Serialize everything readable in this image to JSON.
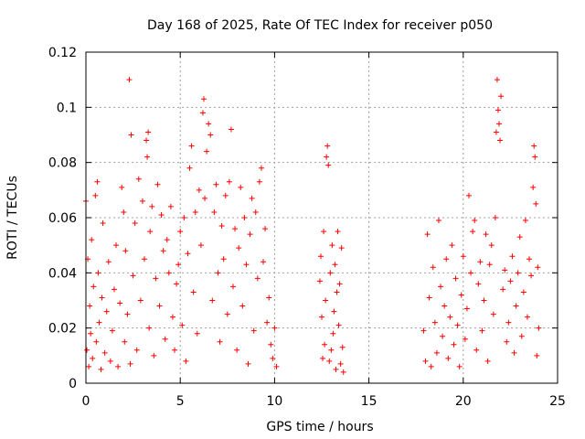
{
  "chart_data": {
    "type": "scatter",
    "title": "Day 168 of 2025, Rate Of TEC Index for receiver p050",
    "xlabel": "GPS time / hours",
    "ylabel": "ROTI / TECUs",
    "xlim": [
      0,
      25
    ],
    "ylim": [
      0,
      0.12
    ],
    "xticks": [
      0,
      5,
      10,
      15,
      20,
      25
    ],
    "yticks": [
      0,
      0.02,
      0.04,
      0.06,
      0.08,
      0.1,
      0.12
    ],
    "xtick_labels": [
      "0",
      "5",
      "10",
      "15",
      "20",
      "25"
    ],
    "ytick_labels": [
      "0",
      "0.02",
      "0.04",
      "0.06",
      "0.08",
      "0.1",
      "0.12"
    ],
    "grid": true,
    "marker": "+",
    "color": "#ff0000",
    "series": [
      {
        "values": [
          [
            0.0,
            0.066
          ],
          [
            0.05,
            0.012
          ],
          [
            0.1,
            0.045
          ],
          [
            0.15,
            0.006
          ],
          [
            0.2,
            0.028
          ],
          [
            0.25,
            0.018
          ],
          [
            0.3,
            0.052
          ],
          [
            0.35,
            0.009
          ],
          [
            0.4,
            0.035
          ],
          [
            0.5,
            0.068
          ],
          [
            0.55,
            0.015
          ],
          [
            0.6,
            0.073
          ],
          [
            0.65,
            0.04
          ],
          [
            0.7,
            0.022
          ],
          [
            0.8,
            0.005
          ],
          [
            0.85,
            0.031
          ],
          [
            0.9,
            0.058
          ],
          [
            1.0,
            0.011
          ],
          [
            1.1,
            0.026
          ],
          [
            1.2,
            0.044
          ],
          [
            1.3,
            0.008
          ],
          [
            1.4,
            0.019
          ],
          [
            1.5,
            0.034
          ],
          [
            1.6,
            0.05
          ],
          [
            1.7,
            0.006
          ],
          [
            1.8,
            0.029
          ],
          [
            1.9,
            0.071
          ],
          [
            2.0,
            0.062
          ],
          [
            2.05,
            0.015
          ],
          [
            2.1,
            0.048
          ],
          [
            2.2,
            0.025
          ],
          [
            2.3,
            0.11
          ],
          [
            2.35,
            0.007
          ],
          [
            2.4,
            0.09
          ],
          [
            2.5,
            0.039
          ],
          [
            2.6,
            0.058
          ],
          [
            2.7,
            0.012
          ],
          [
            2.8,
            0.074
          ],
          [
            2.9,
            0.03
          ],
          [
            3.0,
            0.066
          ],
          [
            3.1,
            0.045
          ],
          [
            3.2,
            0.088
          ],
          [
            3.25,
            0.082
          ],
          [
            3.3,
            0.091
          ],
          [
            3.35,
            0.02
          ],
          [
            3.4,
            0.055
          ],
          [
            3.5,
            0.064
          ],
          [
            3.6,
            0.01
          ],
          [
            3.7,
            0.038
          ],
          [
            3.8,
            0.072
          ],
          [
            3.9,
            0.028
          ],
          [
            4.0,
            0.061
          ],
          [
            4.1,
            0.048
          ],
          [
            4.2,
            0.016
          ],
          [
            4.3,
            0.052
          ],
          [
            4.4,
            0.04
          ],
          [
            4.5,
            0.064
          ],
          [
            4.6,
            0.024
          ],
          [
            4.7,
            0.012
          ],
          [
            4.8,
            0.036
          ],
          [
            4.9,
            0.043
          ],
          [
            5.0,
            0.055
          ],
          [
            5.1,
            0.021
          ],
          [
            5.2,
            0.06
          ],
          [
            5.3,
            0.008
          ],
          [
            5.4,
            0.047
          ],
          [
            5.5,
            0.078
          ],
          [
            5.6,
            0.086
          ],
          [
            5.7,
            0.033
          ],
          [
            5.8,
            0.062
          ],
          [
            5.9,
            0.018
          ],
          [
            6.0,
            0.07
          ],
          [
            6.1,
            0.05
          ],
          [
            6.2,
            0.098
          ],
          [
            6.25,
            0.103
          ],
          [
            6.3,
            0.067
          ],
          [
            6.4,
            0.084
          ],
          [
            6.5,
            0.094
          ],
          [
            6.6,
            0.09
          ],
          [
            6.7,
            0.03
          ],
          [
            6.8,
            0.062
          ],
          [
            6.9,
            0.072
          ],
          [
            7.0,
            0.04
          ],
          [
            7.1,
            0.015
          ],
          [
            7.2,
            0.057
          ],
          [
            7.3,
            0.045
          ],
          [
            7.4,
            0.068
          ],
          [
            7.5,
            0.025
          ],
          [
            7.6,
            0.073
          ],
          [
            7.7,
            0.092
          ],
          [
            7.8,
            0.035
          ],
          [
            7.9,
            0.056
          ],
          [
            8.0,
            0.012
          ],
          [
            8.1,
            0.049
          ],
          [
            8.2,
            0.071
          ],
          [
            8.3,
            0.028
          ],
          [
            8.4,
            0.06
          ],
          [
            8.5,
            0.043
          ],
          [
            8.6,
            0.007
          ],
          [
            8.7,
            0.054
          ],
          [
            8.8,
            0.067
          ],
          [
            8.9,
            0.019
          ],
          [
            9.0,
            0.062
          ],
          [
            9.1,
            0.038
          ],
          [
            9.2,
            0.073
          ],
          [
            9.3,
            0.078
          ],
          [
            9.4,
            0.044
          ],
          [
            9.5,
            0.056
          ],
          [
            9.6,
            0.022
          ],
          [
            9.7,
            0.031
          ],
          [
            9.8,
            0.014
          ],
          [
            9.9,
            0.009
          ],
          [
            10.0,
            0.02
          ],
          [
            10.1,
            0.006
          ],
          [
            12.4,
            0.037
          ],
          [
            12.45,
            0.046
          ],
          [
            12.5,
            0.024
          ],
          [
            12.55,
            0.009
          ],
          [
            12.6,
            0.055
          ],
          [
            12.65,
            0.014
          ],
          [
            12.7,
            0.03
          ],
          [
            12.75,
            0.082
          ],
          [
            12.8,
            0.086
          ],
          [
            12.85,
            0.079
          ],
          [
            12.9,
            0.008
          ],
          [
            12.95,
            0.04
          ],
          [
            13.0,
            0.012
          ],
          [
            13.05,
            0.05
          ],
          [
            13.1,
            0.018
          ],
          [
            13.15,
            0.026
          ],
          [
            13.2,
            0.043
          ],
          [
            13.25,
            0.005
          ],
          [
            13.3,
            0.033
          ],
          [
            13.35,
            0.055
          ],
          [
            13.4,
            0.021
          ],
          [
            13.45,
            0.036
          ],
          [
            13.5,
            0.007
          ],
          [
            13.55,
            0.049
          ],
          [
            13.6,
            0.013
          ],
          [
            13.65,
            0.004
          ],
          [
            17.9,
            0.019
          ],
          [
            18.0,
            0.008
          ],
          [
            18.1,
            0.054
          ],
          [
            18.2,
            0.031
          ],
          [
            18.3,
            0.006
          ],
          [
            18.4,
            0.042
          ],
          [
            18.5,
            0.022
          ],
          [
            18.6,
            0.011
          ],
          [
            18.7,
            0.059
          ],
          [
            18.8,
            0.035
          ],
          [
            18.9,
            0.017
          ],
          [
            19.0,
            0.028
          ],
          [
            19.1,
            0.045
          ],
          [
            19.2,
            0.009
          ],
          [
            19.3,
            0.024
          ],
          [
            19.4,
            0.05
          ],
          [
            19.5,
            0.014
          ],
          [
            19.6,
            0.038
          ],
          [
            19.7,
            0.021
          ],
          [
            19.8,
            0.006
          ],
          [
            19.9,
            0.032
          ],
          [
            20.0,
            0.046
          ],
          [
            20.1,
            0.016
          ],
          [
            20.2,
            0.027
          ],
          [
            20.3,
            0.068
          ],
          [
            20.4,
            0.04
          ],
          [
            20.5,
            0.055
          ],
          [
            20.6,
            0.059
          ],
          [
            20.7,
            0.012
          ],
          [
            20.8,
            0.036
          ],
          [
            20.9,
            0.044
          ],
          [
            21.0,
            0.019
          ],
          [
            21.1,
            0.03
          ],
          [
            21.2,
            0.054
          ],
          [
            21.3,
            0.008
          ],
          [
            21.4,
            0.043
          ],
          [
            21.5,
            0.05
          ],
          [
            21.6,
            0.025
          ],
          [
            21.7,
            0.06
          ],
          [
            21.75,
            0.091
          ],
          [
            21.8,
            0.11
          ],
          [
            21.85,
            0.099
          ],
          [
            21.9,
            0.094
          ],
          [
            21.95,
            0.088
          ],
          [
            22.0,
            0.104
          ],
          [
            22.1,
            0.034
          ],
          [
            22.2,
            0.041
          ],
          [
            22.3,
            0.015
          ],
          [
            22.4,
            0.022
          ],
          [
            22.5,
            0.037
          ],
          [
            22.6,
            0.046
          ],
          [
            22.7,
            0.011
          ],
          [
            22.8,
            0.028
          ],
          [
            22.9,
            0.04
          ],
          [
            23.0,
            0.053
          ],
          [
            23.1,
            0.017
          ],
          [
            23.2,
            0.033
          ],
          [
            23.3,
            0.059
          ],
          [
            23.4,
            0.024
          ],
          [
            23.5,
            0.045
          ],
          [
            23.6,
            0.039
          ],
          [
            23.7,
            0.071
          ],
          [
            23.75,
            0.086
          ],
          [
            23.8,
            0.082
          ],
          [
            23.85,
            0.065
          ],
          [
            23.9,
            0.01
          ],
          [
            23.95,
            0.042
          ],
          [
            24.0,
            0.02
          ]
        ]
      }
    ]
  }
}
